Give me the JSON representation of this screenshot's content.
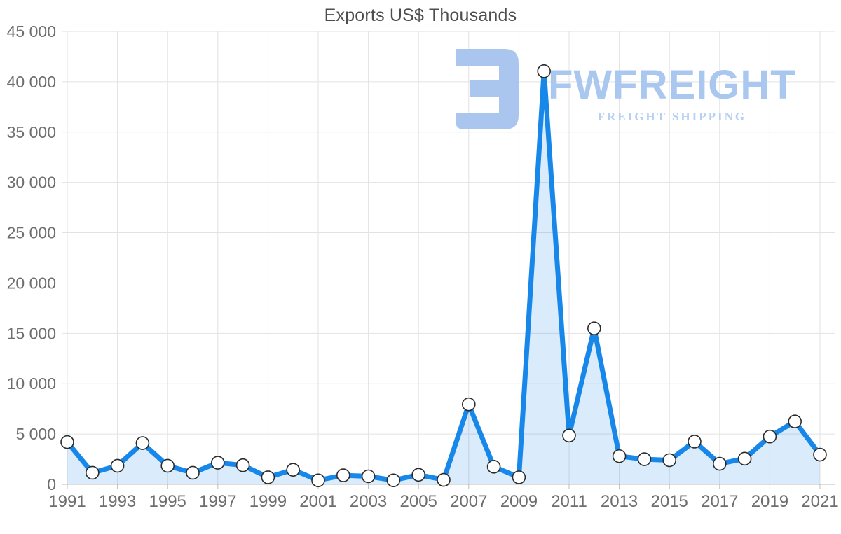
{
  "page": {
    "background": "#ffffff"
  },
  "chart_data": {
    "type": "area",
    "title": "Exports US$ Thousands",
    "x": [
      1991,
      1992,
      1993,
      1994,
      1995,
      1996,
      1997,
      1998,
      1999,
      2000,
      2001,
      2002,
      2003,
      2004,
      2005,
      2006,
      2007,
      2008,
      2009,
      2010,
      2011,
      2012,
      2013,
      2014,
      2015,
      2016,
      2017,
      2018,
      2019,
      2020,
      2021
    ],
    "values": [
      4200,
      1150,
      1850,
      4100,
      1850,
      1150,
      2150,
      1900,
      700,
      1450,
      400,
      900,
      800,
      400,
      950,
      450,
      7950,
      1750,
      700,
      41050,
      4850,
      15500,
      2800,
      2500,
      2400,
      4250,
      2050,
      2550,
      4750,
      6250,
      2950
    ],
    "series_name": "Exports US$ Thousands",
    "xlabel": "",
    "ylabel": "",
    "ylim": [
      0,
      45000
    ],
    "ytick_step": 5000,
    "ytick_labels": [
      "0",
      "5 000",
      "10 000",
      "15 000",
      "20 000",
      "25 000",
      "30 000",
      "35 000",
      "40 000",
      "45 000"
    ],
    "xtick_labels": [
      "1991",
      "1993",
      "1995",
      "1997",
      "1999",
      "2001",
      "2003",
      "2005",
      "2007",
      "2009",
      "2011",
      "2013",
      "2015",
      "2017",
      "2019",
      "2021"
    ],
    "xtick_every": 2,
    "grid": true,
    "legend": "none",
    "line_color": "#1787e9",
    "fill_color": "rgba(23,135,233,0.16)",
    "marker_fill": "#ffffff",
    "marker_stroke": "#2b2b2b",
    "marker_radius": 9
  },
  "watermark": {
    "brand": "FWFREIGHT",
    "tagline": "FREIGHT SHIPPING",
    "brand_color": "#a9c7ef",
    "tagline_color": "#b6d0f2",
    "glyph_color": "#aac6ef"
  },
  "axes_style": {
    "label_color": "#6e6e6e",
    "grid_color": "#e2e2e2",
    "axis_line_color": "#bbbbbb",
    "title_color": "#4d4d4d"
  }
}
